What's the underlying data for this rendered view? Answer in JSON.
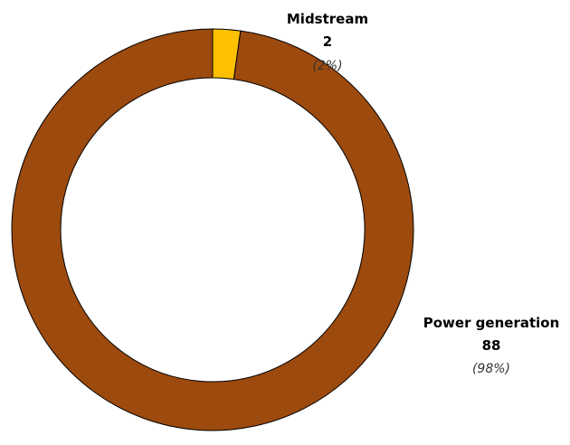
{
  "chart_data": {
    "type": "pie",
    "style": "donut",
    "slices": [
      {
        "label": "Midstream",
        "value": 2,
        "percent_label": "(2%)",
        "color": "#ffc000"
      },
      {
        "label": "Power generation",
        "value": 88,
        "percent_label": "(98%)",
        "color": "#9c4a0e"
      }
    ],
    "slice_border_color": "#000000",
    "legend": "none",
    "grid": false
  }
}
